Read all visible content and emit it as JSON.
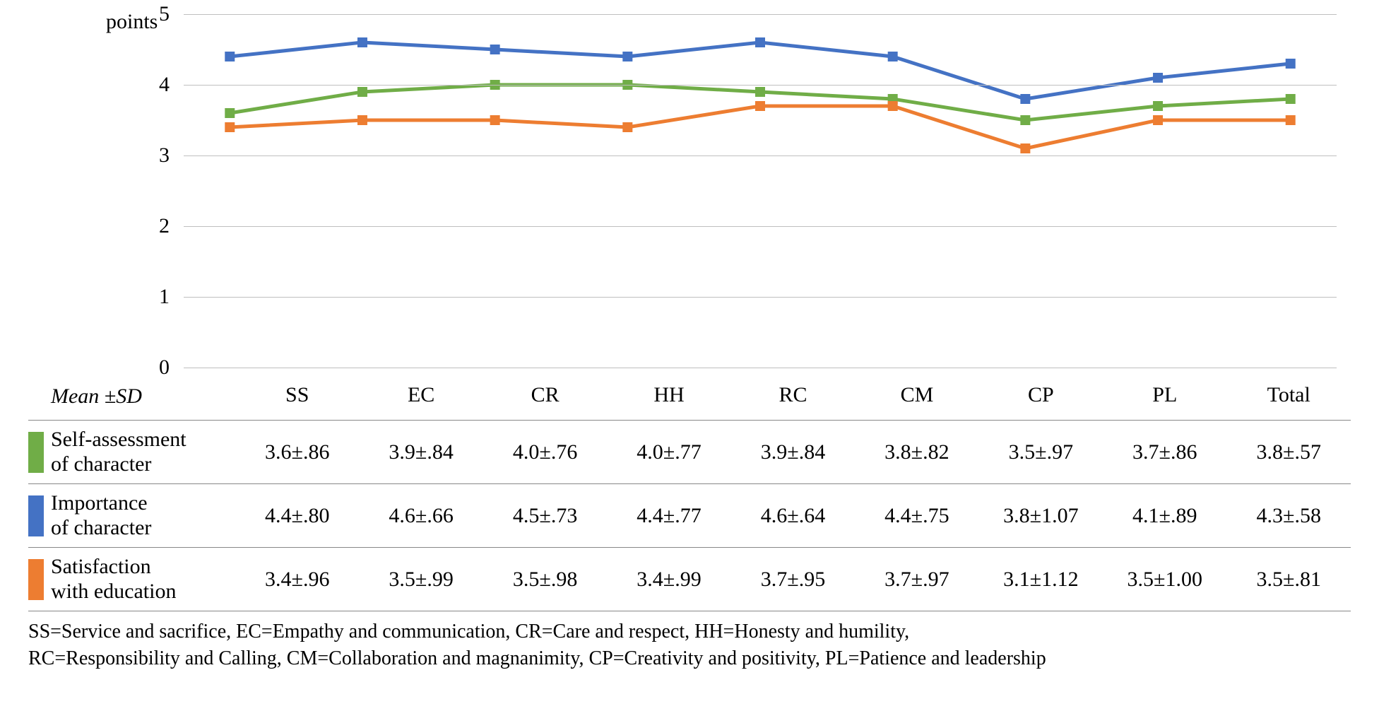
{
  "chart": {
    "type": "line",
    "y_title": "points",
    "ylim": [
      0,
      5
    ],
    "yticks": [
      0,
      1,
      2,
      3,
      4,
      5
    ],
    "grid_color": "#bfbfbf",
    "background_color": "#ffffff",
    "tick_fontsize": 30,
    "categories": [
      "SS",
      "EC",
      "CR",
      "HH",
      "RC",
      "CM",
      "CP",
      "PL",
      "Total"
    ],
    "line_width": 5,
    "marker_size": 14,
    "marker_style": "square",
    "series": [
      {
        "key": "importance",
        "label": "Importance of character",
        "color": "#4472c4",
        "values": [
          4.4,
          4.6,
          4.5,
          4.4,
          4.6,
          4.4,
          3.8,
          4.1,
          4.3
        ]
      },
      {
        "key": "self_assessment",
        "label": "Self-assessment of character",
        "color": "#70ad47",
        "values": [
          3.6,
          3.9,
          4.0,
          4.0,
          3.9,
          3.8,
          3.5,
          3.7,
          3.8
        ]
      },
      {
        "key": "satisfaction",
        "label": "Satisfaction with education",
        "color": "#ed7d31",
        "values": [
          3.4,
          3.5,
          3.5,
          3.4,
          3.7,
          3.7,
          3.1,
          3.5,
          3.5
        ]
      }
    ]
  },
  "table": {
    "header_label": "Mean ±SD",
    "columns": [
      "SS",
      "EC",
      "CR",
      "HH",
      "RC",
      "CM",
      "CP",
      "PL",
      "Total"
    ],
    "rows": [
      {
        "swatch_color": "#70ad47",
        "label_line1": "Self-assessment",
        "label_line2": "of character",
        "cells": [
          "3.6±.86",
          "3.9±.84",
          "4.0±.76",
          "4.0±.77",
          "3.9±.84",
          "3.8±.82",
          "3.5±.97",
          "3.7±.86",
          "3.8±.57"
        ]
      },
      {
        "swatch_color": "#4472c4",
        "label_line1": "Importance",
        "label_line2": "of character",
        "cells": [
          "4.4±.80",
          "4.6±.66",
          "4.5±.73",
          "4.4±.77",
          "4.6±.64",
          "4.4±.75",
          "3.8±1.07",
          "4.1±.89",
          "4.3±.58"
        ]
      },
      {
        "swatch_color": "#ed7d31",
        "label_line1": "Satisfaction",
        "label_line2": "with education",
        "cells": [
          "3.4±.96",
          "3.5±.99",
          "3.5±.98",
          "3.4±.99",
          "3.7±.95",
          "3.7±.97",
          "3.1±1.12",
          "3.5±1.00",
          "3.5±.81"
        ]
      }
    ]
  },
  "footnote": {
    "line1": "SS=Service and sacrifice, EC=Empathy and communication, CR=Care and respect, HH=Honesty and humility,",
    "line2": "RC=Responsibility and Calling, CM=Collaboration and magnanimity, CP=Creativity and positivity, PL=Patience and leadership"
  }
}
